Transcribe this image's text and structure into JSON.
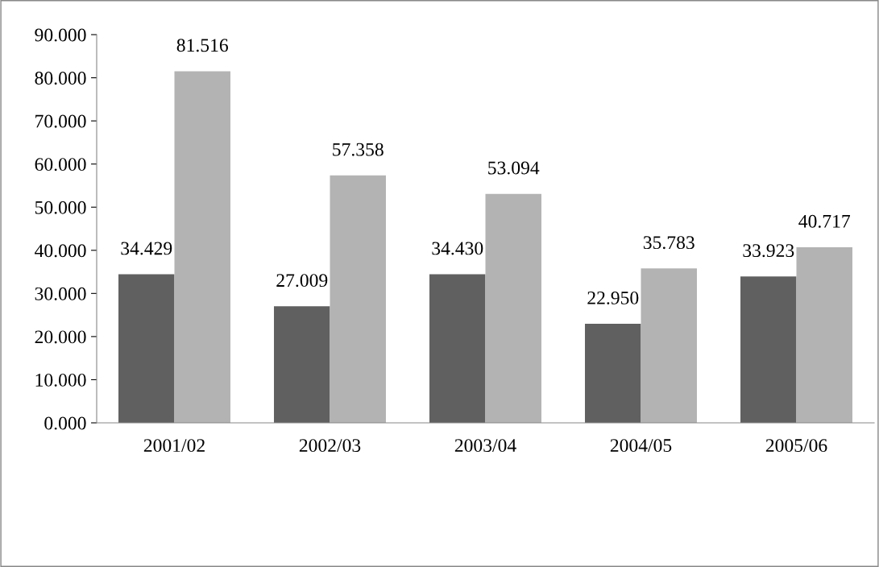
{
  "chart_data": {
    "type": "bar",
    "categories": [
      "2001/02",
      "2002/03",
      "2003/04",
      "2004/05",
      "2005/06"
    ],
    "series": [
      {
        "color": "#606060",
        "values": [
          34.429,
          27.009,
          34.43,
          22.95,
          33.923
        ],
        "value_labels": [
          "34.429",
          "27.009",
          "34.430",
          "22.950",
          "33.923"
        ]
      },
      {
        "color": "#b3b3b3",
        "values": [
          81.516,
          57.358,
          53.094,
          35.783,
          40.717
        ],
        "value_labels": [
          "81.516",
          "57.358",
          "53.094",
          "35.783",
          "40.717"
        ]
      }
    ],
    "ylim": [
      0,
      90
    ],
    "yticks": [
      {
        "value": 0,
        "label": "0.000"
      },
      {
        "value": 10,
        "label": "10.000"
      },
      {
        "value": 20,
        "label": "20.000"
      },
      {
        "value": 30,
        "label": "30.000"
      },
      {
        "value": 40,
        "label": "40.000"
      },
      {
        "value": 50,
        "label": "50.000"
      },
      {
        "value": 60,
        "label": "60.000"
      },
      {
        "value": 70,
        "label": "70.000"
      },
      {
        "value": 80,
        "label": "80.000"
      },
      {
        "value": 90,
        "label": "90.000"
      }
    ],
    "grid": false
  }
}
